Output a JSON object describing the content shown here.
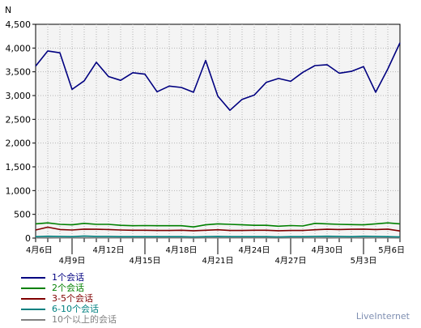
{
  "chart_data": {
    "type": "line",
    "ylabel": "N",
    "ylim": [
      0,
      4500
    ],
    "yticks": [
      "0",
      "500",
      "1,000",
      "1,500",
      "2,000",
      "2,500",
      "3,000",
      "3,500",
      "4,000",
      "4,500"
    ],
    "grid": true,
    "legend_position": "bottom-left",
    "x": [
      "4月6日",
      "4月7日",
      "4月8日",
      "4月9日",
      "4月10日",
      "4月11日",
      "4月12日",
      "4月13日",
      "4月14日",
      "4月15日",
      "4月16日",
      "4月17日",
      "4月18日",
      "4月19日",
      "4月20日",
      "4月21日",
      "4月22日",
      "4月23日",
      "4月24日",
      "4月25日",
      "4月26日",
      "4月27日",
      "4月28日",
      "4月29日",
      "4月30日",
      "5月1日",
      "5月2日",
      "5月3日",
      "5月4日",
      "5月5日",
      "5月6日"
    ],
    "xtick_labels_top": [
      "4月6日",
      "4月12日",
      "4月18日",
      "4月24日",
      "4月30日",
      "5月6日"
    ],
    "xtick_labels_bottom": [
      "4月9日",
      "4月15日",
      "4月21日",
      "4月27日",
      "5月3日"
    ],
    "series": [
      {
        "name": "1个会话",
        "color": "#000080",
        "values": [
          3620,
          3940,
          3900,
          3130,
          3310,
          3700,
          3400,
          3320,
          3480,
          3450,
          3080,
          3200,
          3170,
          3070,
          3740,
          2990,
          2690,
          2920,
          3010,
          3280,
          3360,
          3300,
          3490,
          3630,
          3650,
          3470,
          3510,
          3610,
          3070,
          3560,
          4110
        ]
      },
      {
        "name": "2个会话",
        "color": "#008000",
        "values": [
          300,
          320,
          290,
          280,
          310,
          290,
          290,
          270,
          260,
          265,
          260,
          260,
          260,
          235,
          280,
          300,
          290,
          280,
          270,
          270,
          250,
          265,
          255,
          310,
          300,
          290,
          285,
          280,
          300,
          320,
          300
        ]
      },
      {
        "name": "3-5个会话",
        "color": "#800000",
        "values": [
          170,
          230,
          180,
          170,
          190,
          185,
          180,
          170,
          165,
          165,
          160,
          160,
          165,
          155,
          165,
          175,
          160,
          160,
          165,
          165,
          155,
          160,
          160,
          175,
          185,
          180,
          185,
          190,
          180,
          190,
          150
        ]
      },
      {
        "name": "6-10个会话",
        "color": "#008080",
        "values": [
          30,
          40,
          35,
          30,
          45,
          35,
          35,
          30,
          30,
          30,
          30,
          30,
          30,
          25,
          30,
          35,
          30,
          30,
          30,
          30,
          25,
          30,
          30,
          35,
          40,
          35,
          30,
          40,
          35,
          30,
          25
        ]
      },
      {
        "name": "10个以上的会话",
        "color": "#808080",
        "values": [
          5,
          6,
          5,
          5,
          6,
          5,
          5,
          5,
          5,
          5,
          5,
          5,
          5,
          4,
          5,
          5,
          5,
          5,
          5,
          5,
          4,
          5,
          5,
          5,
          6,
          5,
          5,
          6,
          5,
          5,
          4
        ]
      }
    ]
  },
  "legend": {
    "items": [
      {
        "label": "1个会话",
        "color": "#000080"
      },
      {
        "label": "2个会话",
        "color": "#008000"
      },
      {
        "label": "3-5个会话",
        "color": "#800000"
      },
      {
        "label": "6-10个会话",
        "color": "#008080"
      },
      {
        "label": "10个以上的会话",
        "color": "#808080"
      }
    ]
  },
  "brand": "LiveInternet"
}
